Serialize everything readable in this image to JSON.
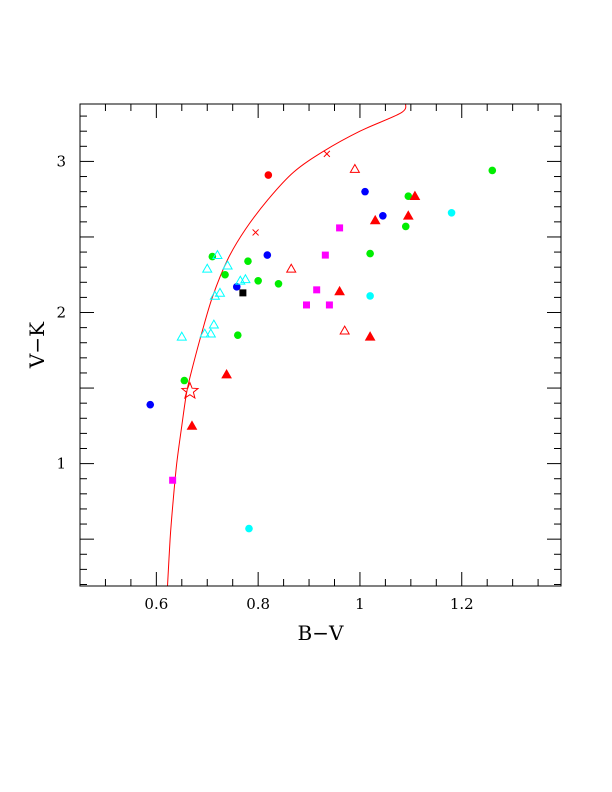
{
  "chart_data": {
    "type": "scatter",
    "xlabel": "B−V",
    "ylabel": "V−K",
    "xlim": [
      0.45,
      1.395
    ],
    "ylim": [
      0.19,
      3.38
    ],
    "x_ticks": [
      {
        "value": 0.6,
        "label": "0.6"
      },
      {
        "value": 0.8,
        "label": "0.8"
      },
      {
        "value": 1.0,
        "label": "1"
      },
      {
        "value": 1.2,
        "label": "1.2"
      }
    ],
    "y_ticks": [
      {
        "value": 1,
        "label": "1"
      },
      {
        "value": 2,
        "label": "2"
      },
      {
        "value": 3,
        "label": "3"
      }
    ],
    "grid": false,
    "curve": {
      "color": "#ff0000",
      "points": [
        [
          0.622,
          0.19
        ],
        [
          0.627,
          0.5
        ],
        [
          0.633,
          0.75
        ],
        [
          0.64,
          1.0
        ],
        [
          0.65,
          1.25
        ],
        [
          0.66,
          1.48
        ],
        [
          0.672,
          1.65
        ],
        [
          0.688,
          1.85
        ],
        [
          0.71,
          2.1
        ],
        [
          0.74,
          2.35
        ],
        [
          0.775,
          2.55
        ],
        [
          0.82,
          2.75
        ],
        [
          0.87,
          2.93
        ],
        [
          0.93,
          3.07
        ],
        [
          1.0,
          3.2
        ],
        [
          1.08,
          3.32
        ],
        [
          1.09,
          3.38
        ]
      ],
      "markers": [
        [
          0.795,
          2.53
        ],
        [
          0.935,
          3.05
        ]
      ]
    },
    "star": {
      "x": 0.666,
      "y": 1.48,
      "color": "#ff0000"
    },
    "series": [
      {
        "marker": "circle",
        "color": "#00ee00",
        "points": [
          [
            0.655,
            1.55
          ],
          [
            0.71,
            2.37
          ],
          [
            0.735,
            2.25
          ],
          [
            0.76,
            1.85
          ],
          [
            0.78,
            2.34
          ],
          [
            0.8,
            2.21
          ],
          [
            0.84,
            2.19
          ],
          [
            1.02,
            2.39
          ],
          [
            1.09,
            2.57
          ],
          [
            1.095,
            2.77
          ],
          [
            1.26,
            2.94
          ]
        ]
      },
      {
        "marker": "circle",
        "color": "#0000ff",
        "points": [
          [
            0.588,
            1.39
          ],
          [
            0.758,
            2.17
          ],
          [
            0.818,
            2.38
          ],
          [
            1.01,
            2.8
          ],
          [
            1.045,
            2.64
          ]
        ]
      },
      {
        "marker": "circle",
        "color": "#ff0000",
        "points": [
          [
            0.82,
            2.91
          ]
        ]
      },
      {
        "marker": "circle",
        "color": "#00ffff",
        "points": [
          [
            0.782,
            0.57
          ],
          [
            1.02,
            2.11
          ],
          [
            1.18,
            2.66
          ]
        ]
      },
      {
        "marker": "square",
        "color": "#ff00ff",
        "points": [
          [
            0.632,
            0.89
          ],
          [
            0.895,
            2.05
          ],
          [
            0.915,
            2.15
          ],
          [
            0.932,
            2.38
          ],
          [
            0.94,
            2.05
          ],
          [
            0.96,
            2.56
          ]
        ]
      },
      {
        "marker": "square",
        "color": "#000000",
        "points": [
          [
            0.77,
            2.13
          ]
        ]
      },
      {
        "marker": "triangle",
        "color": "#ff0000",
        "points": [
          [
            0.67,
            1.25
          ],
          [
            0.738,
            1.59
          ],
          [
            0.96,
            2.14
          ],
          [
            1.02,
            1.84
          ],
          [
            1.03,
            2.61
          ],
          [
            1.095,
            2.64
          ],
          [
            1.108,
            2.77
          ]
        ]
      },
      {
        "marker": "triangle-open",
        "color": "#ff0000",
        "points": [
          [
            0.865,
            2.29
          ],
          [
            0.97,
            1.88
          ],
          [
            0.99,
            2.95
          ]
        ]
      },
      {
        "marker": "triangle-open",
        "color": "#00ffff",
        "points": [
          [
            0.65,
            1.84
          ],
          [
            0.695,
            1.86
          ],
          [
            0.7,
            2.29
          ],
          [
            0.707,
            1.86
          ],
          [
            0.713,
            1.92
          ],
          [
            0.715,
            2.11
          ],
          [
            0.72,
            2.38
          ],
          [
            0.725,
            2.13
          ],
          [
            0.74,
            2.31
          ],
          [
            0.765,
            2.21
          ],
          [
            0.775,
            2.22
          ]
        ]
      }
    ]
  }
}
